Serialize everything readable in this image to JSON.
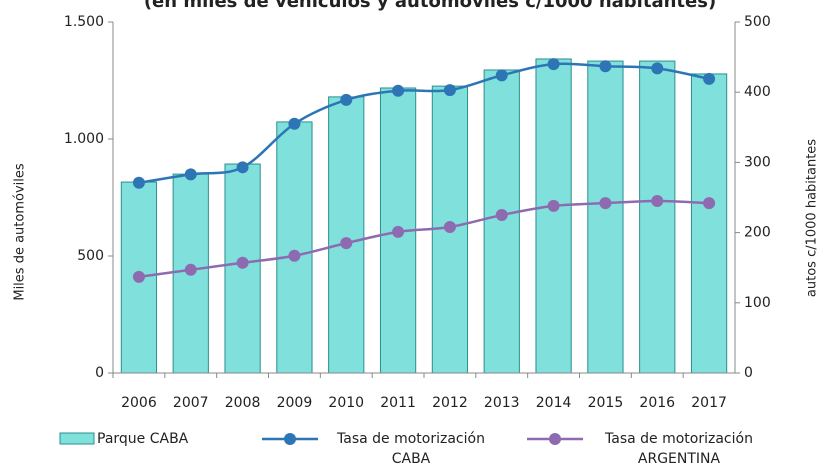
{
  "chart_data": {
    "type": "combo",
    "title": "(en miles de vehículos y automóviles c/1000 habitantes)",
    "y_label": "Miles de automóviles",
    "y2_label": "autos c/1000 habitantes",
    "categories": [
      "2006",
      "2007",
      "2008",
      "2009",
      "2010",
      "2011",
      "2012",
      "2013",
      "2014",
      "2015",
      "2016",
      "2017"
    ],
    "series": [
      {
        "name": "Parque CABA",
        "type": "bar",
        "color": "#80e0dc",
        "values": [
          816,
          850,
          893,
          1073,
          1180,
          1218,
          1226,
          1295,
          1342,
          1333,
          1333,
          1278
        ]
      },
      {
        "name": "Tasa de motorización CABA",
        "type": "line",
        "axis": "y2",
        "color": "#2e75b6",
        "values": [
          271,
          283,
          293,
          355,
          389,
          402,
          403,
          424,
          440,
          437,
          434,
          419
        ]
      },
      {
        "name": "Tasa de motorización ARGENTINA",
        "type": "line",
        "axis": "y2",
        "color": "#8e6bb0",
        "values": [
          137,
          147,
          157,
          167,
          185,
          201,
          208,
          225,
          238,
          242,
          245,
          242
        ]
      }
    ],
    "ylim": [
      0,
      1500
    ],
    "yticks": [
      0,
      500,
      {
        "value": 1000,
        "label": "1.000"
      },
      {
        "value": 1500,
        "label": "1.500"
      }
    ],
    "y2lim": [
      0,
      500
    ],
    "y2ticks": [
      0,
      100,
      200,
      300,
      400,
      500
    ],
    "grid": false,
    "legend": "bottom"
  }
}
